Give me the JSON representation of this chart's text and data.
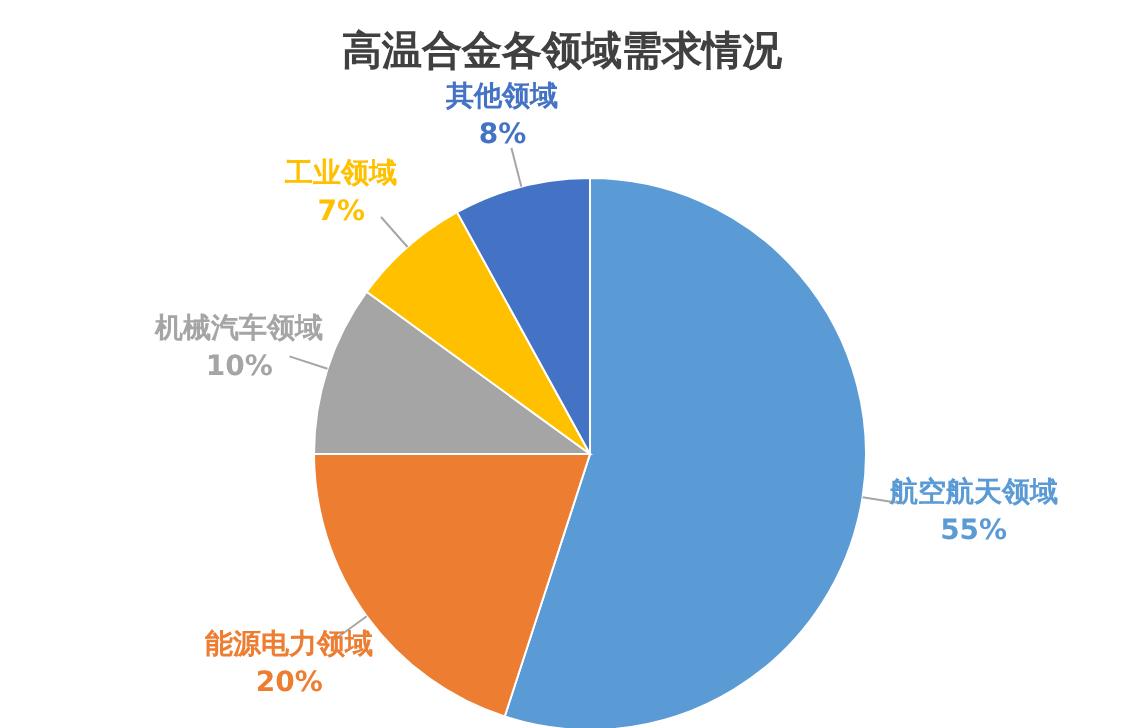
{
  "chart_data": {
    "type": "pie",
    "title": "高温合金各领域需求情况",
    "categories": [
      "航空航天领域",
      "能源电力领域",
      "机械汽车领域",
      "工业领域",
      "其他领域"
    ],
    "values": [
      55,
      20,
      10,
      7,
      8
    ],
    "colors": [
      "#5b9bd5",
      "#ed7d31",
      "#a5a5a5",
      "#ffc000",
      "#4472c4"
    ],
    "value_labels": [
      "55%",
      "20%",
      "10%",
      "7%",
      "8%"
    ]
  }
}
